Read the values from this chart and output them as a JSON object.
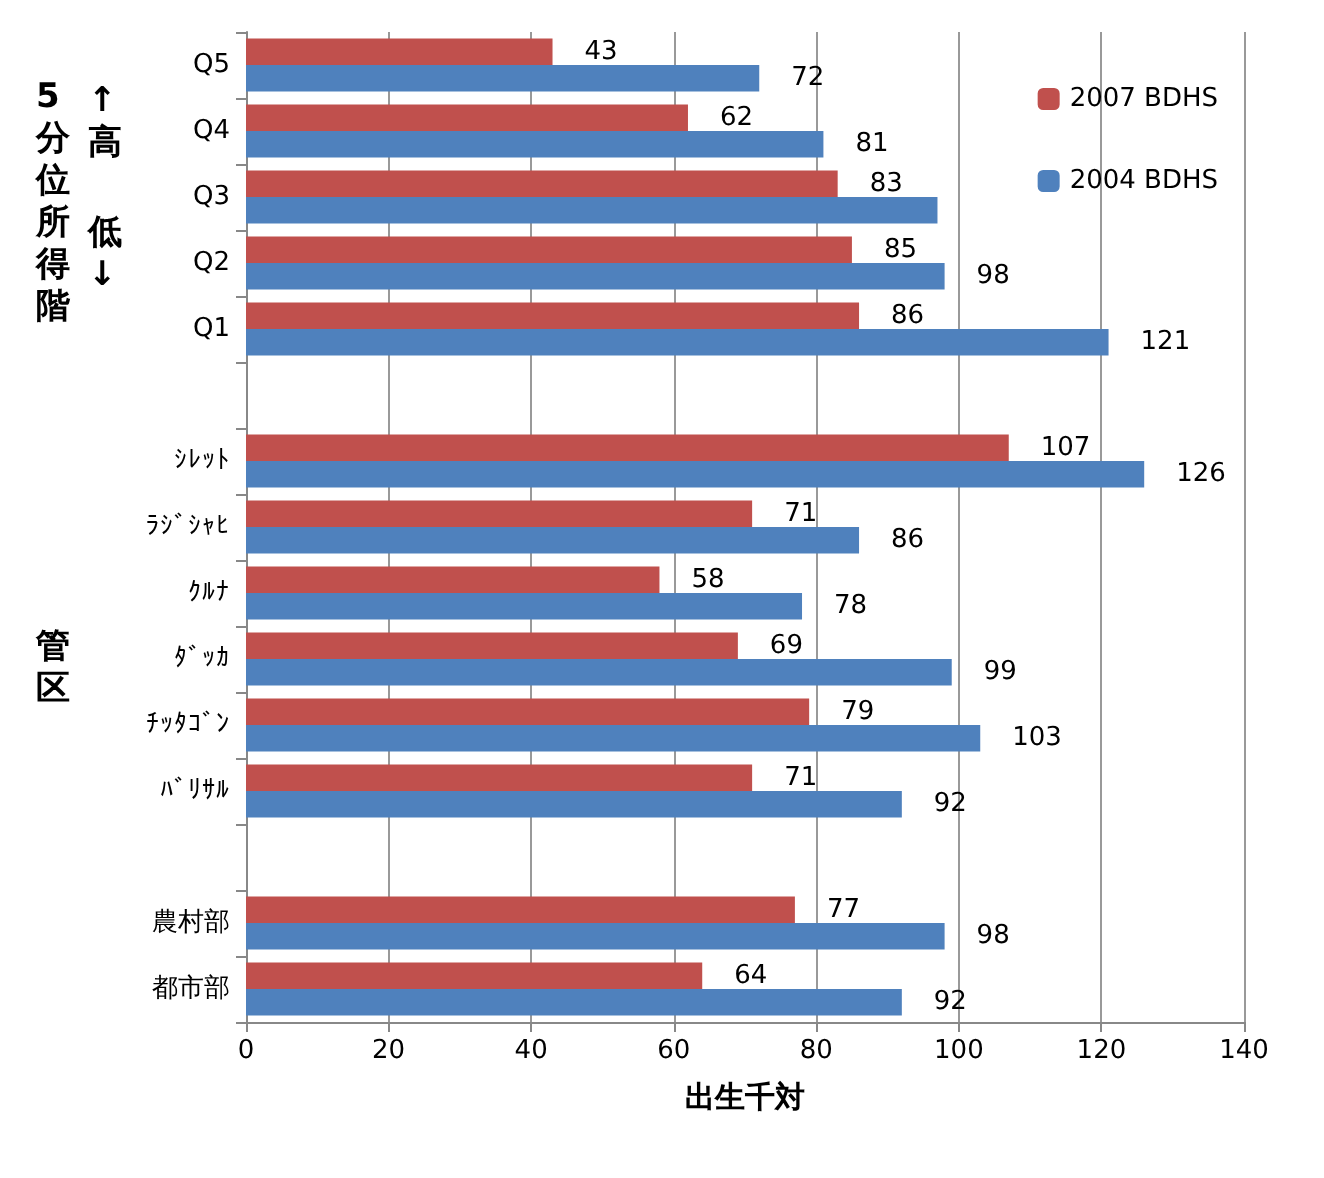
{
  "chart_data": {
    "type": "bar",
    "orientation": "horizontal",
    "xlabel": "出生千対",
    "categories": [
      "Q5",
      "Q4",
      "Q3",
      "Q2",
      "Q1",
      null,
      "ｼﾚｯﾄ",
      "ﾗｼﾞｼｬﾋ",
      "ｸﾙﾅ",
      "ﾀﾞｯｶ",
      "ﾁｯﾀｺﾞﾝ",
      "ﾊﾞﾘｻﾙ",
      null,
      "農村部",
      "都市部"
    ],
    "series": [
      {
        "name": "2007 BDHS",
        "color": "#c0504d",
        "values": [
          43,
          62,
          83,
          85,
          86,
          null,
          107,
          71,
          58,
          69,
          79,
          71,
          null,
          77,
          64
        ],
        "value_labels": [
          "43",
          "62",
          "83",
          "85",
          "86",
          null,
          "107",
          "71",
          "58",
          "69",
          "79",
          "71",
          null,
          "77",
          "64"
        ]
      },
      {
        "name": "2004 BDHS",
        "color": "#4f81bd",
        "values": [
          72,
          81,
          97,
          98,
          121,
          null,
          126,
          86,
          78,
          99,
          103,
          92,
          null,
          98,
          92
        ],
        "value_labels": [
          "72",
          "81",
          null,
          "98",
          "121",
          null,
          "126",
          "86",
          "78",
          "99",
          "103",
          "92",
          null,
          "98",
          "92"
        ]
      }
    ],
    "xlim": [
      0,
      140
    ],
    "xticks": [
      0,
      20,
      40,
      60,
      80,
      100,
      120,
      140
    ],
    "grid": "x",
    "legend": "top right",
    "annotations": [
      "5分位所得階",
      "↑高",
      "低↓",
      "管区"
    ]
  }
}
